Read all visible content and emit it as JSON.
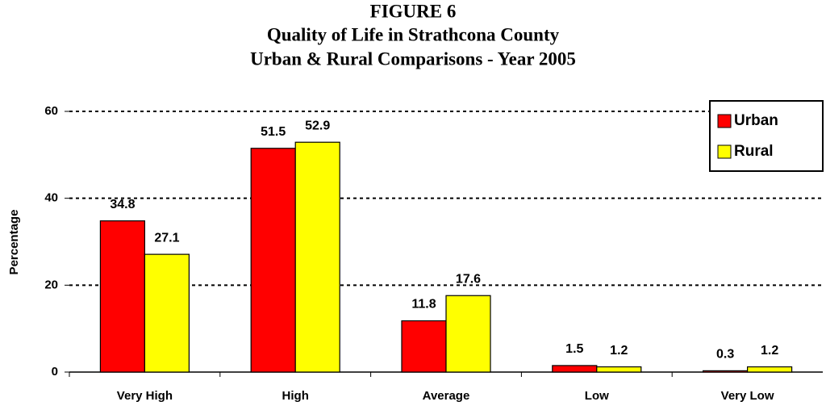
{
  "chart_data": {
    "type": "bar",
    "title": [
      "FIGURE 6",
      "Quality of Life in Strathcona County",
      "Urban & Rural Comparisons - Year 2005"
    ],
    "y_label": "Percentage",
    "categories": [
      "Very High",
      "High",
      "Average",
      "Low",
      "Very Low"
    ],
    "series": [
      {
        "name": "Urban",
        "color": "#ff0000",
        "values": [
          34.8,
          51.5,
          11.8,
          1.5,
          0.3
        ]
      },
      {
        "name": "Rural",
        "color": "#ffff00",
        "values": [
          27.1,
          52.9,
          17.6,
          1.2,
          1.2
        ]
      }
    ],
    "ylim": [
      0,
      60
    ],
    "yticks": [
      0,
      20,
      40,
      60
    ],
    "grid": true,
    "legend": "top-right"
  }
}
